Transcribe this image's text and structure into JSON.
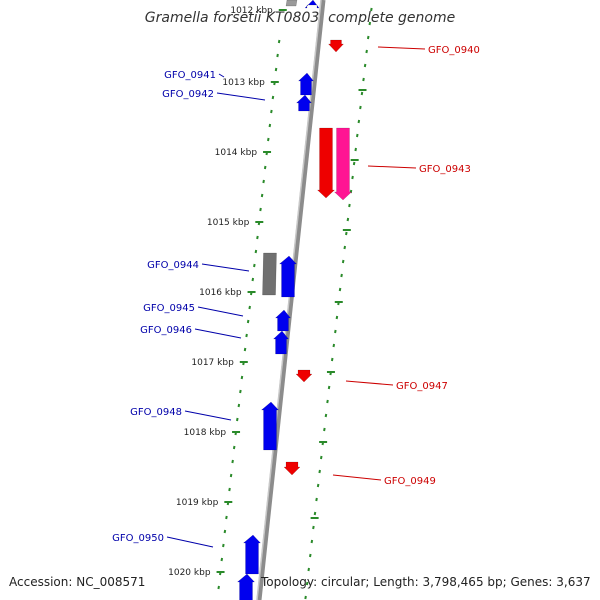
{
  "title": "Gramella forsetii KT0803, complete genome",
  "accession": "Accession: NC_008571",
  "topology": "Topology: circular; Length: 3,798,465 bp; Genes: 3,637",
  "colors": {
    "backbone": "#8c8c8c",
    "tick": "#2a8a2a",
    "forward_gene": "#0000ee",
    "reverse_gene": "#ee0000",
    "other_gene": "#ff1493",
    "pseudo_gene": "#707070",
    "label_forward": "#0000aa",
    "label_reverse": "#cc0000"
  },
  "scale_labels": [
    "1012 kbp",
    "1013 kbp",
    "1014 kbp",
    "1015 kbp",
    "1016 kbp",
    "1017 kbp",
    "1018 kbp",
    "1019 kbp",
    "1020 kbp"
  ],
  "genes": [
    {
      "label": "GFO_0940",
      "strand": "reverse"
    },
    {
      "label": "GFO_0941",
      "strand": "forward"
    },
    {
      "label": "GFO_0942",
      "strand": "forward"
    },
    {
      "label": "GFO_0943",
      "strand": "reverse"
    },
    {
      "label": "GFO_0944",
      "strand": "forward"
    },
    {
      "label": "GFO_0945",
      "strand": "forward"
    },
    {
      "label": "GFO_0946",
      "strand": "forward"
    },
    {
      "label": "GFO_0947",
      "strand": "reverse"
    },
    {
      "label": "GFO_0948",
      "strand": "forward"
    },
    {
      "label": "GFO_0949",
      "strand": "reverse"
    },
    {
      "label": "GFO_0950",
      "strand": "forward"
    }
  ]
}
